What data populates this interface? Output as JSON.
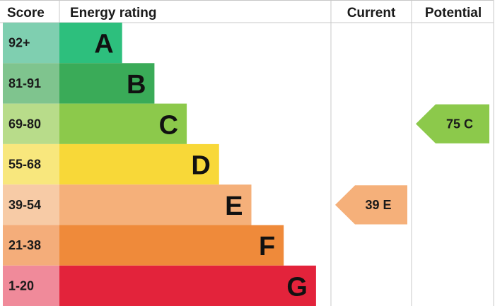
{
  "chart_data": {
    "type": "bar",
    "headers": {
      "score": "Score",
      "rating": "Energy rating",
      "current": "Current",
      "potential": "Potential"
    },
    "bands": [
      {
        "letter": "A",
        "range": "92+",
        "score_color": "#7fcfb0",
        "color": "#2dbf7d",
        "rel_width": 1
      },
      {
        "letter": "B",
        "range": "81-91",
        "score_color": "#7fc48e",
        "color": "#3aab58",
        "rel_width": 2
      },
      {
        "letter": "C",
        "range": "69-80",
        "score_color": "#b8dc8a",
        "color": "#8cc94b",
        "rel_width": 3
      },
      {
        "letter": "D",
        "range": "55-68",
        "score_color": "#f8e77d",
        "color": "#f8d838",
        "rel_width": 4
      },
      {
        "letter": "E",
        "range": "39-54",
        "score_color": "#f7cba6",
        "color": "#f5b07a",
        "rel_width": 5
      },
      {
        "letter": "F",
        "range": "21-38",
        "score_color": "#f4ad7a",
        "color": "#ef8a3a",
        "rel_width": 6
      },
      {
        "letter": "G",
        "range": "1-20",
        "score_color": "#f08a9a",
        "color": "#e3233b",
        "rel_width": 7
      }
    ],
    "current": {
      "value": 39,
      "band": "E",
      "label": "39  E",
      "color": "#f5b07a"
    },
    "potential": {
      "value": 75,
      "band": "C",
      "label": "75  C",
      "color": "#8cc94b"
    }
  }
}
